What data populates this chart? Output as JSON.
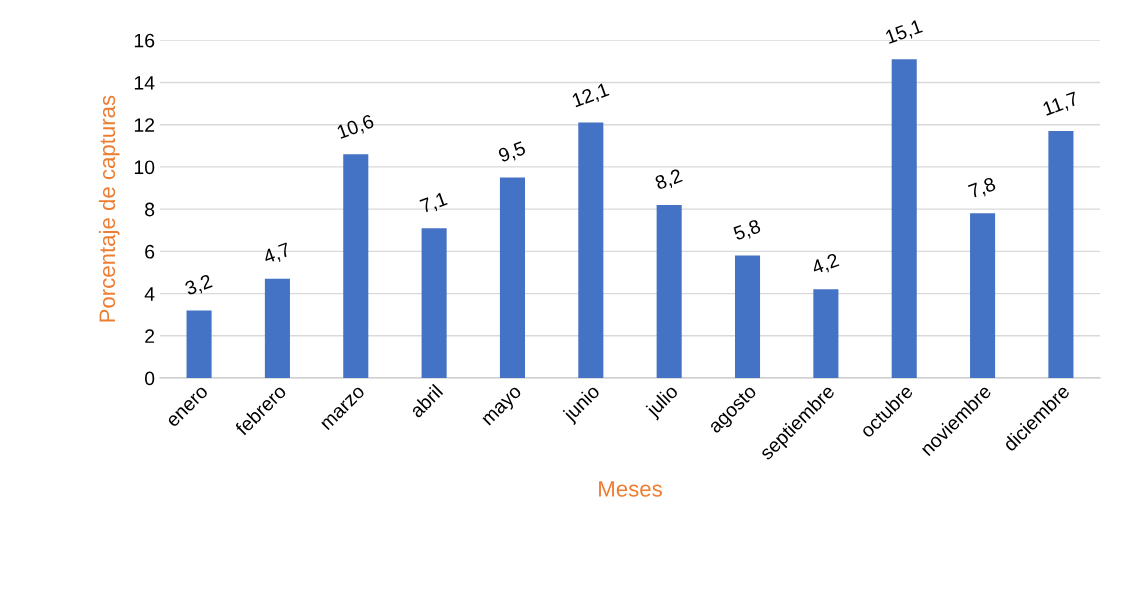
{
  "chart_data": {
    "type": "bar",
    "xlabel": "Meses",
    "ylabel": "Porcentaje de capturas",
    "categories": [
      "enero",
      "febrero",
      "marzo",
      "abril",
      "mayo",
      "junio",
      "julio",
      "agosto",
      "septiembre",
      "octubre",
      "noviembre",
      "diciembre"
    ],
    "values": [
      3.2,
      4.7,
      10.6,
      7.1,
      9.5,
      12.1,
      8.2,
      5.8,
      4.2,
      15.1,
      7.8,
      11.7
    ],
    "value_labels": [
      "3,2",
      "4,7",
      "10,6",
      "7,1",
      "9,5",
      "12,1",
      "8,2",
      "5,8",
      "4,2",
      "15,1",
      "7,8",
      "11,7"
    ],
    "color": "#4472c4",
    "ylim": [
      0,
      16
    ],
    "yticks": [
      0,
      2,
      4,
      6,
      8,
      10,
      12,
      14,
      16
    ],
    "grid": "y",
    "legend": false
  }
}
